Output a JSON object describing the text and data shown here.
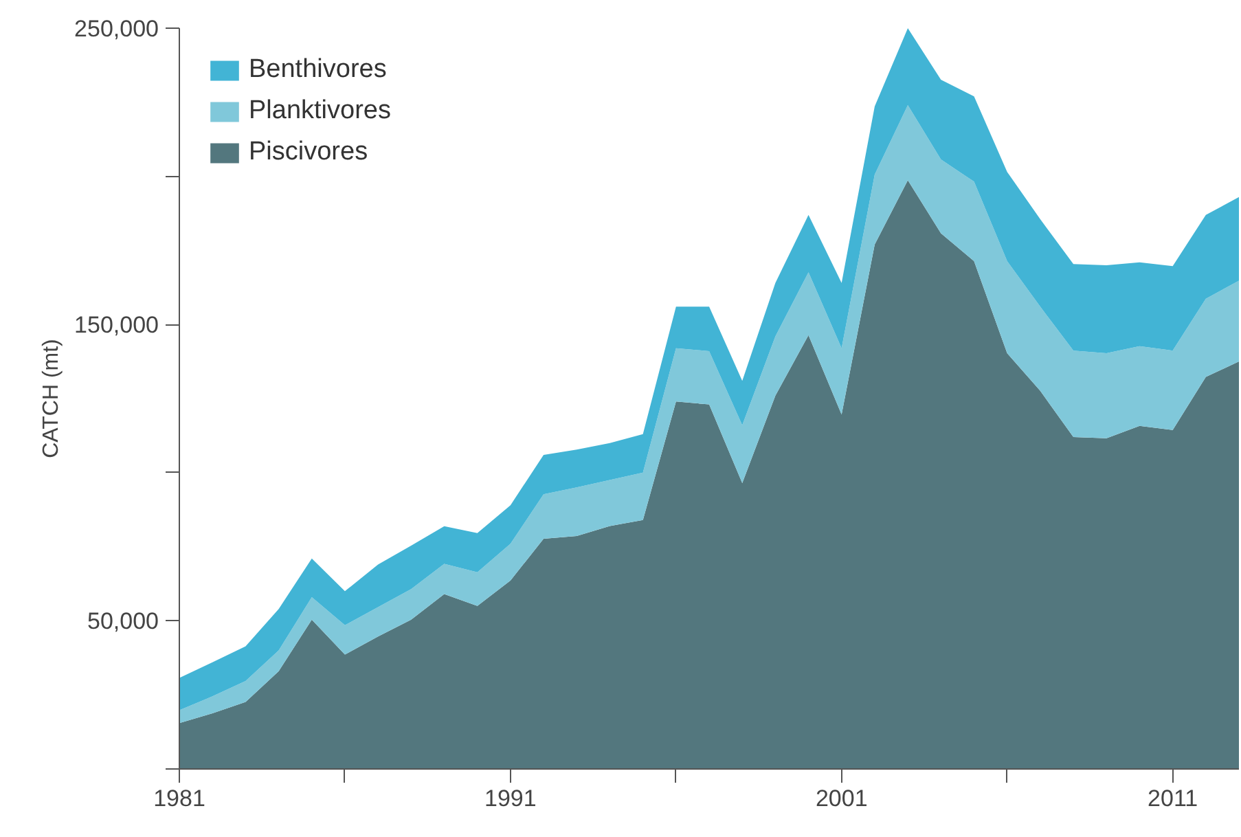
{
  "chart_data": {
    "type": "area",
    "stacked": true,
    "ylabel": "CATCH (mt)",
    "x": [
      1981,
      1982,
      1983,
      1984,
      1985,
      1986,
      1987,
      1988,
      1989,
      1990,
      1991,
      1992,
      1993,
      1994,
      1995,
      1996,
      1997,
      1998,
      1999,
      2000,
      2001,
      2002,
      2003,
      2004,
      2005,
      2006,
      2007,
      2008,
      2009,
      2010,
      2011,
      2012,
      2013
    ],
    "series": [
      {
        "name": "Piscivores",
        "color": "#53777e",
        "values": [
          15500,
          18800,
          22600,
          33000,
          50400,
          38600,
          44700,
          50400,
          59000,
          55000,
          63600,
          77700,
          78600,
          82000,
          84000,
          124000,
          123000,
          96500,
          126000,
          146400,
          119600,
          177000,
          198700,
          180800,
          171400,
          140300,
          127600,
          112000,
          111600,
          115800,
          114400,
          132300,
          137500
        ]
      },
      {
        "name": "Planktivores",
        "color": "#80c8da",
        "values": [
          4300,
          5700,
          7100,
          7000,
          7600,
          9900,
          9900,
          10300,
          10200,
          11400,
          12400,
          15000,
          16400,
          15500,
          16000,
          18000,
          18000,
          19500,
          20000,
          21200,
          22400,
          23600,
          25300,
          24900,
          26800,
          31100,
          28400,
          29200,
          28700,
          26900,
          26800,
          26400,
          27300
        ]
      },
      {
        "name": "Benthivores",
        "color": "#42b4d5",
        "values": [
          10900,
          11500,
          11700,
          14000,
          13000,
          11500,
          14400,
          14700,
          12700,
          13200,
          13000,
          13300,
          12800,
          12500,
          13000,
          14000,
          15000,
          15000,
          18000,
          19400,
          22000,
          23000,
          26000,
          26900,
          28800,
          30100,
          29500,
          29200,
          29700,
          28300,
          28500,
          28300,
          28200
        ]
      }
    ],
    "xlim": [
      1981,
      2013
    ],
    "xticks": [
      1981,
      {
        "value": 1986,
        "label": null
      },
      1991,
      {
        "value": 1996,
        "label": null
      },
      2001,
      {
        "value": 2006,
        "label": null
      },
      2011
    ],
    "ylim": [
      0,
      250000
    ],
    "yticks": [
      {
        "value": 0,
        "label": null
      },
      {
        "value": 50000,
        "label": "50,000"
      },
      {
        "value": 100000,
        "label": null
      },
      {
        "value": 150000,
        "label": "150,000"
      },
      {
        "value": 200000,
        "label": null
      },
      {
        "value": 250000,
        "label": "250,000"
      }
    ],
    "grid": false,
    "legend": "top left"
  }
}
